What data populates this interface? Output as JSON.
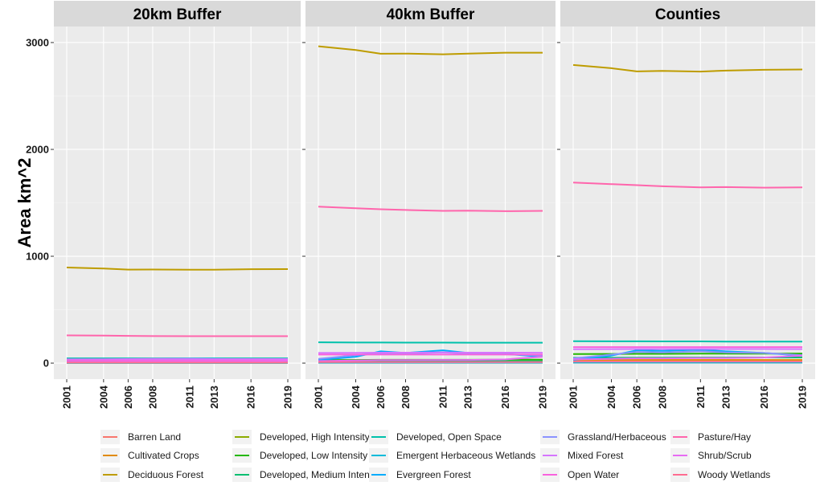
{
  "chart_data": {
    "type": "line",
    "ylabel": "Area km^2",
    "xlabel": "",
    "ylim": [
      -150,
      3150
    ],
    "yticks": [
      0,
      1000,
      2000,
      3000
    ],
    "x": [
      2001,
      2004,
      2006,
      2008,
      2011,
      2013,
      2016,
      2019
    ],
    "facets": [
      {
        "title": "20km Buffer",
        "series": [
          {
            "name": "Barren Land",
            "values": [
              2,
              2,
              2,
              2,
              2,
              2,
              2,
              2
            ]
          },
          {
            "name": "Cultivated Crops",
            "values": [
              5,
              5,
              5,
              5,
              5,
              5,
              5,
              5
            ]
          },
          {
            "name": "Deciduous Forest",
            "values": [
              895,
              885,
              875,
              876,
              874,
              874,
              879,
              880
            ]
          },
          {
            "name": "Developed, High Intensity",
            "values": [
              3,
              3,
              3,
              3,
              3,
              3,
              3,
              3
            ]
          },
          {
            "name": "Developed, Low Intensity",
            "values": [
              12,
              12,
              13,
              13,
              13,
              13,
              13,
              13
            ]
          },
          {
            "name": "Developed, Medium Intensity",
            "values": [
              6,
              6,
              7,
              7,
              7,
              7,
              7,
              7
            ]
          },
          {
            "name": "Developed, Open Space",
            "values": [
              45,
              45,
              45,
              45,
              45,
              45,
              45,
              45
            ]
          },
          {
            "name": "Emergent Herbaceous Wetlands",
            "values": [
              2,
              2,
              2,
              2,
              2,
              2,
              2,
              2
            ]
          },
          {
            "name": "Evergreen Forest",
            "values": [
              15,
              25,
              38,
              38,
              42,
              40,
              35,
              30
            ]
          },
          {
            "name": "Grassland/Herbaceous",
            "values": [
              10,
              20,
              30,
              30,
              30,
              30,
              30,
              30
            ]
          },
          {
            "name": "Mixed Forest",
            "values": [
              35,
              36,
              38,
              40,
              40,
              38,
              38,
              38
            ]
          },
          {
            "name": "Open Water",
            "values": [
              25,
              25,
              25,
              25,
              25,
              25,
              25,
              25
            ]
          },
          {
            "name": "Pasture/Hay",
            "values": [
              260,
              258,
              255,
              253,
              252,
              252,
              252,
              252
            ]
          },
          {
            "name": "Shrub/Scrub",
            "values": [
              8,
              10,
              12,
              12,
              12,
              12,
              14,
              20
            ]
          },
          {
            "name": "Woody Wetlands",
            "values": [
              5,
              5,
              5,
              5,
              5,
              5,
              5,
              5
            ]
          }
        ]
      },
      {
        "title": "40km Buffer",
        "series": [
          {
            "name": "Barren Land",
            "values": [
              3,
              3,
              3,
              3,
              3,
              3,
              3,
              3
            ]
          },
          {
            "name": "Cultivated Crops",
            "values": [
              15,
              15,
              15,
              15,
              15,
              15,
              15,
              15
            ]
          },
          {
            "name": "Deciduous Forest",
            "values": [
              2965,
              2930,
              2895,
              2897,
              2890,
              2897,
              2905,
              2905
            ]
          },
          {
            "name": "Developed, High Intensity",
            "values": [
              6,
              6,
              7,
              7,
              7,
              7,
              7,
              8
            ]
          },
          {
            "name": "Developed, Low Intensity",
            "values": [
              30,
              30,
              31,
              31,
              31,
              31,
              32,
              32
            ]
          },
          {
            "name": "Developed, Medium Intensity",
            "values": [
              15,
              15,
              16,
              16,
              17,
              17,
              17,
              18
            ]
          },
          {
            "name": "Developed, Open Space",
            "values": [
              195,
              193,
              193,
              192,
              192,
              191,
              191,
              191
            ]
          },
          {
            "name": "Emergent Herbaceous Wetlands",
            "values": [
              4,
              4,
              4,
              4,
              4,
              4,
              4,
              4
            ]
          },
          {
            "name": "Evergreen Forest",
            "values": [
              30,
              60,
              110,
              95,
              120,
              95,
              85,
              60
            ]
          },
          {
            "name": "Grassland/Herbaceous",
            "values": [
              40,
              75,
              95,
              90,
              100,
              90,
              85,
              70
            ]
          },
          {
            "name": "Mixed Forest",
            "values": [
              95,
              96,
              98,
              98,
              100,
              98,
              98,
              97
            ]
          },
          {
            "name": "Open Water",
            "values": [
              80,
              80,
              80,
              80,
              80,
              80,
              80,
              80
            ]
          },
          {
            "name": "Pasture/Hay",
            "values": [
              1465,
              1450,
              1440,
              1433,
              1425,
              1427,
              1422,
              1425
            ]
          },
          {
            "name": "Shrub/Scrub",
            "values": [
              20,
              25,
              28,
              28,
              30,
              30,
              35,
              60
            ]
          },
          {
            "name": "Woody Wetlands",
            "values": [
              10,
              10,
              10,
              10,
              10,
              10,
              10,
              10
            ]
          }
        ]
      },
      {
        "title": "Counties",
        "series": [
          {
            "name": "Barren Land",
            "values": [
              4,
              4,
              4,
              4,
              4,
              4,
              4,
              4
            ]
          },
          {
            "name": "Cultivated Crops",
            "values": [
              30,
              30,
              30,
              30,
              30,
              30,
              30,
              30
            ]
          },
          {
            "name": "Deciduous Forest",
            "values": [
              2790,
              2760,
              2730,
              2735,
              2728,
              2737,
              2745,
              2748
            ]
          },
          {
            "name": "Developed, High Intensity",
            "values": [
              8,
              8,
              9,
              9,
              9,
              9,
              10,
              10
            ]
          },
          {
            "name": "Developed, Low Intensity",
            "values": [
              85,
              86,
              87,
              87,
              88,
              88,
              89,
              90
            ]
          },
          {
            "name": "Developed, Medium Intensity",
            "values": [
              50,
              50,
              51,
              51,
              52,
              52,
              53,
              53
            ]
          },
          {
            "name": "Developed, Open Space",
            "values": [
              205,
              204,
              204,
              203,
              203,
              202,
              202,
              202
            ]
          },
          {
            "name": "Emergent Herbaceous Wetlands",
            "values": [
              5,
              5,
              5,
              5,
              5,
              5,
              5,
              5
            ]
          },
          {
            "name": "Evergreen Forest",
            "values": [
              30,
              70,
              120,
              115,
              125,
              110,
              95,
              70
            ]
          },
          {
            "name": "Grassland/Herbaceous",
            "values": [
              45,
              80,
              105,
              100,
              110,
              100,
              95,
              75
            ]
          },
          {
            "name": "Mixed Forest",
            "values": [
              130,
              131,
              132,
              132,
              133,
              132,
              132,
              131
            ]
          },
          {
            "name": "Open Water",
            "values": [
              150,
              150,
              150,
              150,
              150,
              150,
              150,
              150
            ]
          },
          {
            "name": "Pasture/Hay",
            "values": [
              1690,
              1675,
              1665,
              1655,
              1645,
              1647,
              1642,
              1645
            ]
          },
          {
            "name": "Shrub/Scrub",
            "values": [
              35,
              40,
              45,
              45,
              48,
              48,
              52,
              70
            ]
          },
          {
            "name": "Woody Wetlands",
            "values": [
              15,
              15,
              15,
              15,
              15,
              15,
              15,
              15
            ]
          }
        ]
      }
    ],
    "legend": {
      "position": "bottom",
      "entries": [
        {
          "name": "Barren Land",
          "color": "#F8766D"
        },
        {
          "name": "Cultivated Crops",
          "color": "#E18A00"
        },
        {
          "name": "Deciduous Forest",
          "color": "#BE9C00"
        },
        {
          "name": "Developed, High Intensity",
          "color": "#8CAB00"
        },
        {
          "name": "Developed, Low Intensity",
          "color": "#24B700"
        },
        {
          "name": "Developed, Medium Intensity",
          "color": "#00BE70"
        },
        {
          "name": "Developed, Open Space",
          "color": "#00C1AB"
        },
        {
          "name": "Emergent Herbaceous Wetlands",
          "color": "#00BBDA"
        },
        {
          "name": "Evergreen Forest",
          "color": "#00ACFC"
        },
        {
          "name": "Grassland/Herbaceous",
          "color": "#8B93FF"
        },
        {
          "name": "Mixed Forest",
          "color": "#D575FE"
        },
        {
          "name": "Open Water",
          "color": "#F962DD"
        },
        {
          "name": "Pasture/Hay",
          "color": "#FF65AC"
        },
        {
          "name": "Shrub/Scrub",
          "color": "#E76BF3"
        },
        {
          "name": "Woody Wetlands",
          "color": "#FF6C91"
        }
      ]
    }
  }
}
